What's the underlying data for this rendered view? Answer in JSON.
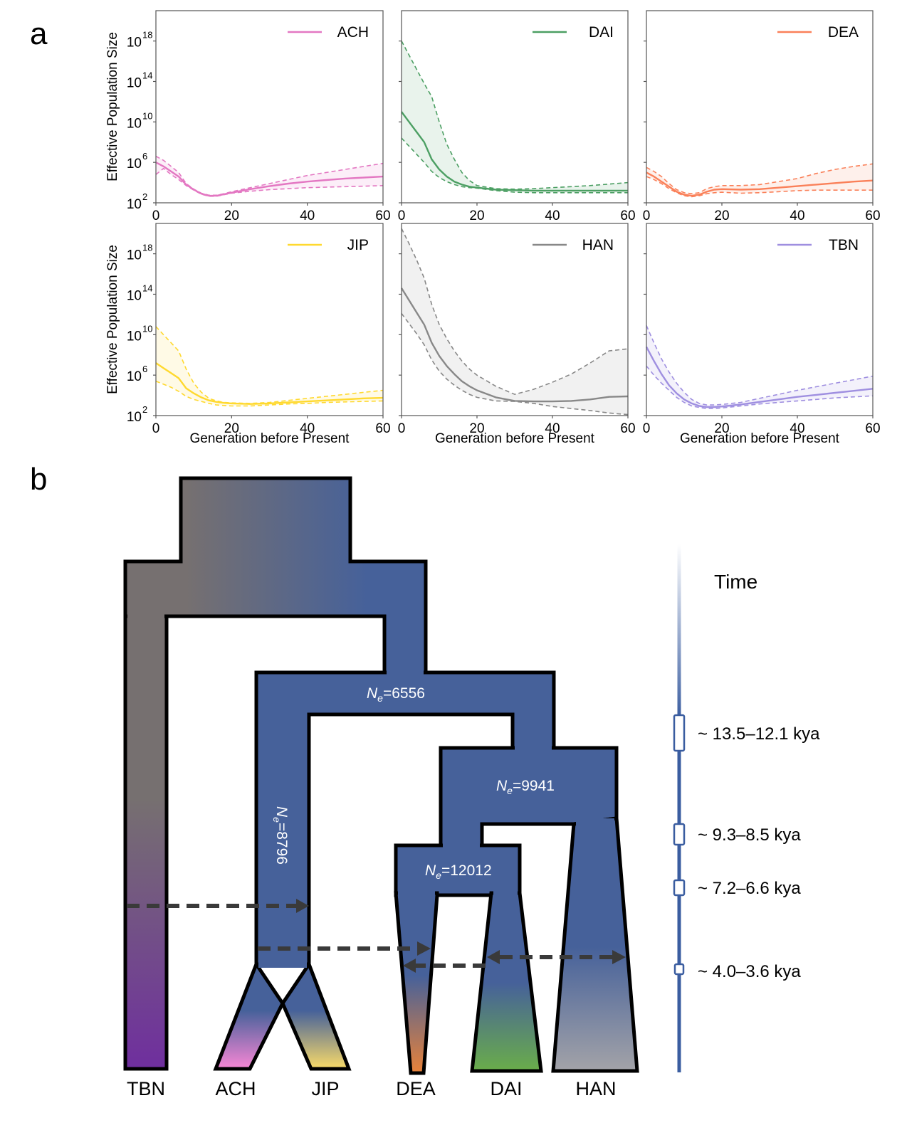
{
  "panel_a": {
    "letter": "a"
  },
  "panel_b": {
    "letter": "b"
  },
  "chart_data": [
    {
      "type": "line",
      "population": "ACH",
      "color": "#e377c2",
      "x": [
        0,
        2,
        4,
        6,
        8,
        10,
        12,
        14,
        16,
        18,
        20,
        25,
        30,
        35,
        40,
        45,
        50,
        55,
        60
      ],
      "median_log10": [
        6.0,
        5.6,
        5.1,
        4.6,
        3.8,
        3.3,
        2.9,
        2.7,
        2.7,
        2.85,
        3.0,
        3.35,
        3.65,
        3.9,
        4.1,
        4.25,
        4.4,
        4.5,
        4.6
      ],
      "upper_log10": [
        6.6,
        6.2,
        5.6,
        5.0,
        3.9,
        3.35,
        2.95,
        2.75,
        2.75,
        2.9,
        3.1,
        3.5,
        3.9,
        4.3,
        4.7,
        5.0,
        5.3,
        5.6,
        5.9
      ],
      "lower_log10": [
        4.8,
        5.4,
        4.8,
        4.3,
        3.7,
        3.25,
        2.85,
        2.65,
        2.65,
        2.8,
        2.95,
        3.15,
        3.3,
        3.4,
        3.5,
        3.55,
        3.6,
        3.65,
        3.7
      ],
      "xlim": [
        0,
        60
      ],
      "ylim_log10": [
        2,
        21
      ],
      "xticks": [
        "0",
        "20",
        "40",
        "60"
      ],
      "yticks": [
        {
          "base": "10",
          "exp": "2"
        },
        {
          "base": "10",
          "exp": "6"
        },
        {
          "base": "10",
          "exp": "10"
        },
        {
          "base": "10",
          "exp": "14"
        },
        {
          "base": "10",
          "exp": "18"
        }
      ],
      "ylabel": "Effective Population Size",
      "xlabel": ""
    },
    {
      "type": "line",
      "population": "DAI",
      "color": "#4c9f63",
      "x": [
        0,
        2,
        4,
        6,
        8,
        10,
        12,
        14,
        16,
        18,
        20,
        25,
        30,
        35,
        40,
        45,
        50,
        55,
        60
      ],
      "median_log10": [
        11.0,
        10.0,
        9.0,
        8.0,
        6.3,
        5.3,
        4.6,
        4.1,
        3.8,
        3.6,
        3.5,
        3.3,
        3.25,
        3.2,
        3.2,
        3.2,
        3.2,
        3.2,
        3.2
      ],
      "upper_log10": [
        18.0,
        16.6,
        15.2,
        13.8,
        12.5,
        10.0,
        7.8,
        6.3,
        5.0,
        4.2,
        3.7,
        3.4,
        3.35,
        3.4,
        3.5,
        3.6,
        3.7,
        3.85,
        4.0
      ],
      "lower_log10": [
        8.4,
        7.6,
        6.8,
        6.0,
        5.1,
        4.5,
        4.1,
        3.8,
        3.6,
        3.5,
        3.45,
        3.2,
        3.05,
        3.0,
        3.0,
        3.0,
        3.0,
        3.0,
        3.0
      ],
      "xlim": [
        0,
        60
      ],
      "ylim_log10": [
        2,
        21
      ],
      "xticks": [
        "0",
        "20",
        "40",
        "60"
      ],
      "ylabel": "",
      "xlabel": ""
    },
    {
      "type": "line",
      "population": "DEA",
      "color": "#fa8059",
      "x": [
        0,
        2,
        4,
        6,
        8,
        10,
        12,
        14,
        16,
        18,
        20,
        25,
        30,
        35,
        40,
        45,
        50,
        55,
        60
      ],
      "median_log10": [
        5.0,
        4.6,
        4.1,
        3.6,
        3.1,
        2.8,
        2.7,
        2.8,
        3.1,
        3.3,
        3.35,
        3.3,
        3.35,
        3.5,
        3.65,
        3.8,
        3.95,
        4.1,
        4.2
      ],
      "upper_log10": [
        5.5,
        5.1,
        4.6,
        3.9,
        3.3,
        3.0,
        2.9,
        3.0,
        3.4,
        3.6,
        3.7,
        3.7,
        3.8,
        4.1,
        4.4,
        4.9,
        5.3,
        5.6,
        5.85
      ],
      "lower_log10": [
        4.6,
        4.3,
        3.9,
        3.4,
        3.0,
        2.7,
        2.6,
        2.7,
        2.9,
        3.0,
        3.05,
        2.95,
        3.0,
        3.1,
        3.2,
        3.25,
        3.25,
        3.25,
        3.25
      ],
      "xlim": [
        0,
        60
      ],
      "ylim_log10": [
        2,
        21
      ],
      "xticks": [
        "0",
        "20",
        "40",
        "60"
      ],
      "ylabel": "",
      "xlabel": ""
    },
    {
      "type": "line",
      "population": "JIP",
      "color": "#ffd92f",
      "x": [
        0,
        2,
        4,
        6,
        8,
        10,
        12,
        14,
        16,
        18,
        20,
        25,
        30,
        35,
        40,
        45,
        50,
        55,
        60
      ],
      "median_log10": [
        7.2,
        6.7,
        6.2,
        5.7,
        4.7,
        4.2,
        3.8,
        3.5,
        3.35,
        3.25,
        3.2,
        3.15,
        3.2,
        3.3,
        3.4,
        3.5,
        3.6,
        3.7,
        3.75
      ],
      "upper_log10": [
        10.8,
        10.0,
        9.2,
        8.4,
        6.6,
        5.2,
        4.3,
        3.7,
        3.45,
        3.3,
        3.25,
        3.2,
        3.3,
        3.5,
        3.7,
        3.9,
        4.1,
        4.3,
        4.5
      ],
      "lower_log10": [
        5.4,
        5.1,
        4.8,
        4.4,
        3.9,
        3.6,
        3.4,
        3.2,
        3.05,
        3.0,
        2.95,
        2.95,
        3.05,
        3.15,
        3.2,
        3.3,
        3.35,
        3.4,
        3.45
      ],
      "xlim": [
        0,
        60
      ],
      "ylim_log10": [
        2,
        21
      ],
      "xticks": [
        "0",
        "20",
        "40",
        "60"
      ],
      "ylabel": "Effective Population Size",
      "xlabel": "Generation before Present"
    },
    {
      "type": "line",
      "population": "HAN",
      "color": "#888888",
      "x": [
        0,
        2,
        4,
        6,
        8,
        10,
        12,
        14,
        16,
        18,
        20,
        25,
        30,
        35,
        40,
        45,
        50,
        55,
        60
      ],
      "median_log10": [
        14.6,
        13.4,
        12.2,
        11.0,
        9.2,
        7.9,
        6.9,
        6.1,
        5.4,
        4.9,
        4.5,
        3.8,
        3.45,
        3.4,
        3.4,
        3.45,
        3.6,
        3.85,
        3.9
      ],
      "upper_log10": [
        20.5,
        19.0,
        17.4,
        15.6,
        13.0,
        11.0,
        9.6,
        8.4,
        7.4,
        6.6,
        6.0,
        4.9,
        4.1,
        4.6,
        5.3,
        6.1,
        7.2,
        8.4,
        8.6
      ],
      "lower_log10": [
        12.1,
        11.1,
        10.1,
        9.0,
        7.5,
        6.4,
        5.6,
        5.0,
        4.5,
        4.1,
        3.8,
        3.45,
        3.4,
        3.2,
        2.9,
        2.7,
        2.5,
        2.25,
        2.1
      ],
      "xlim": [
        0,
        60
      ],
      "ylim_log10": [
        2,
        21
      ],
      "xticks": [
        "0",
        "20",
        "40",
        "60"
      ],
      "ylabel": "",
      "xlabel": "Generation before Present"
    },
    {
      "type": "line",
      "population": "TBN",
      "color": "#9f8fe0",
      "x": [
        0,
        2,
        4,
        6,
        8,
        10,
        12,
        14,
        16,
        18,
        20,
        25,
        30,
        35,
        40,
        45,
        50,
        55,
        60
      ],
      "median_log10": [
        8.8,
        7.4,
        6.1,
        5.0,
        4.2,
        3.6,
        3.2,
        2.95,
        2.85,
        2.85,
        2.9,
        3.1,
        3.35,
        3.6,
        3.85,
        4.05,
        4.25,
        4.45,
        4.65
      ],
      "upper_log10": [
        10.9,
        9.2,
        7.6,
        6.3,
        5.2,
        4.3,
        3.6,
        3.2,
        3.05,
        3.05,
        3.1,
        3.3,
        3.7,
        4.1,
        4.5,
        4.85,
        5.2,
        5.55,
        5.9
      ],
      "lower_log10": [
        6.9,
        6.0,
        5.2,
        4.5,
        3.8,
        3.3,
        2.95,
        2.8,
        2.7,
        2.7,
        2.75,
        2.95,
        3.15,
        3.3,
        3.45,
        3.6,
        3.75,
        3.85,
        3.95
      ],
      "xlim": [
        0,
        60
      ],
      "ylim_log10": [
        2,
        21
      ],
      "xticks": [
        "0",
        "20",
        "40",
        "60"
      ],
      "ylabel": "",
      "xlabel": "Generation before Present"
    }
  ],
  "diagram": {
    "populations": [
      "TBN",
      "ACH",
      "JIP",
      "DEA",
      "DAI",
      "HAN"
    ],
    "ne_labels": [
      {
        "symbol": "N",
        "sub": "e",
        "value": "=6556"
      },
      {
        "symbol": "N",
        "sub": "e",
        "value": "=9941"
      },
      {
        "symbol": "N",
        "sub": "e",
        "value": "=12012"
      },
      {
        "symbol": "N",
        "sub": "e",
        "value": "=8796"
      }
    ],
    "colors": {
      "ancestral": "#46619a",
      "outline": "#000000",
      "migration": "#3a3a3a",
      "TBN": "#6f2f9e",
      "ACH": "#f486d4",
      "JIP": "#f5d86a",
      "DEA": "#e8823a",
      "DAI": "#6aad4a",
      "HAN": "#a3a3a8",
      "root_gray": "#767070"
    },
    "migrations": [
      {
        "from": "TBN",
        "to": "ACH-JIP ancestor",
        "direction": "one-way"
      },
      {
        "from": "ACH-JIP ancestor",
        "to": "DEA",
        "direction": "one-way"
      },
      {
        "from": "DAI",
        "to": "DEA",
        "direction": "one-way"
      },
      {
        "from": "DAI",
        "to": "HAN",
        "direction": "two-way"
      }
    ],
    "time_axis": {
      "title": "Time",
      "events": [
        "~ 13.5–12.1 kya",
        "~ 9.3–8.5 kya",
        "~ 7.2–6.6 kya",
        "~ 4.0–3.6 kya"
      ]
    }
  }
}
